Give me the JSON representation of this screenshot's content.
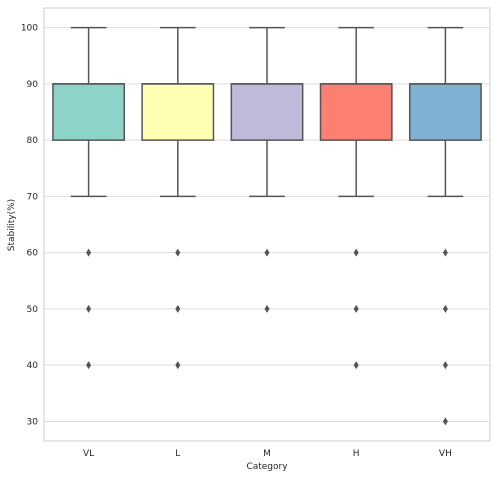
{
  "chart_data": {
    "type": "box",
    "title": "",
    "xlabel": "Category",
    "ylabel": "Stability(%)",
    "categories": [
      "VL",
      "L",
      "M",
      "H",
      "VH"
    ],
    "ylim": [
      26.5,
      103.5
    ],
    "yticks": [
      30,
      40,
      50,
      60,
      70,
      80,
      90,
      100
    ],
    "grid": "horizontal",
    "colors": [
      "#8dd3c7",
      "#ffffb3",
      "#bebada",
      "#fb8072",
      "#80b1d3"
    ],
    "boxes": [
      {
        "category": "VL",
        "whisker_low": 70,
        "q1": 80,
        "median": 90,
        "q3": 90,
        "whisker_high": 100,
        "outliers": [
          60,
          50,
          40
        ]
      },
      {
        "category": "L",
        "whisker_low": 70,
        "q1": 80,
        "median": 90,
        "q3": 90,
        "whisker_high": 100,
        "outliers": [
          60,
          50,
          40
        ]
      },
      {
        "category": "M",
        "whisker_low": 70,
        "q1": 80,
        "median": 90,
        "q3": 90,
        "whisker_high": 100,
        "outliers": [
          60,
          50
        ]
      },
      {
        "category": "H",
        "whisker_low": 70,
        "q1": 80,
        "median": 90,
        "q3": 90,
        "whisker_high": 100,
        "outliers": [
          60,
          50,
          40
        ]
      },
      {
        "category": "VH",
        "whisker_low": 70,
        "q1": 80,
        "median": 90,
        "q3": 90,
        "whisker_high": 100,
        "outliers": [
          60,
          50,
          40,
          30
        ]
      }
    ]
  }
}
